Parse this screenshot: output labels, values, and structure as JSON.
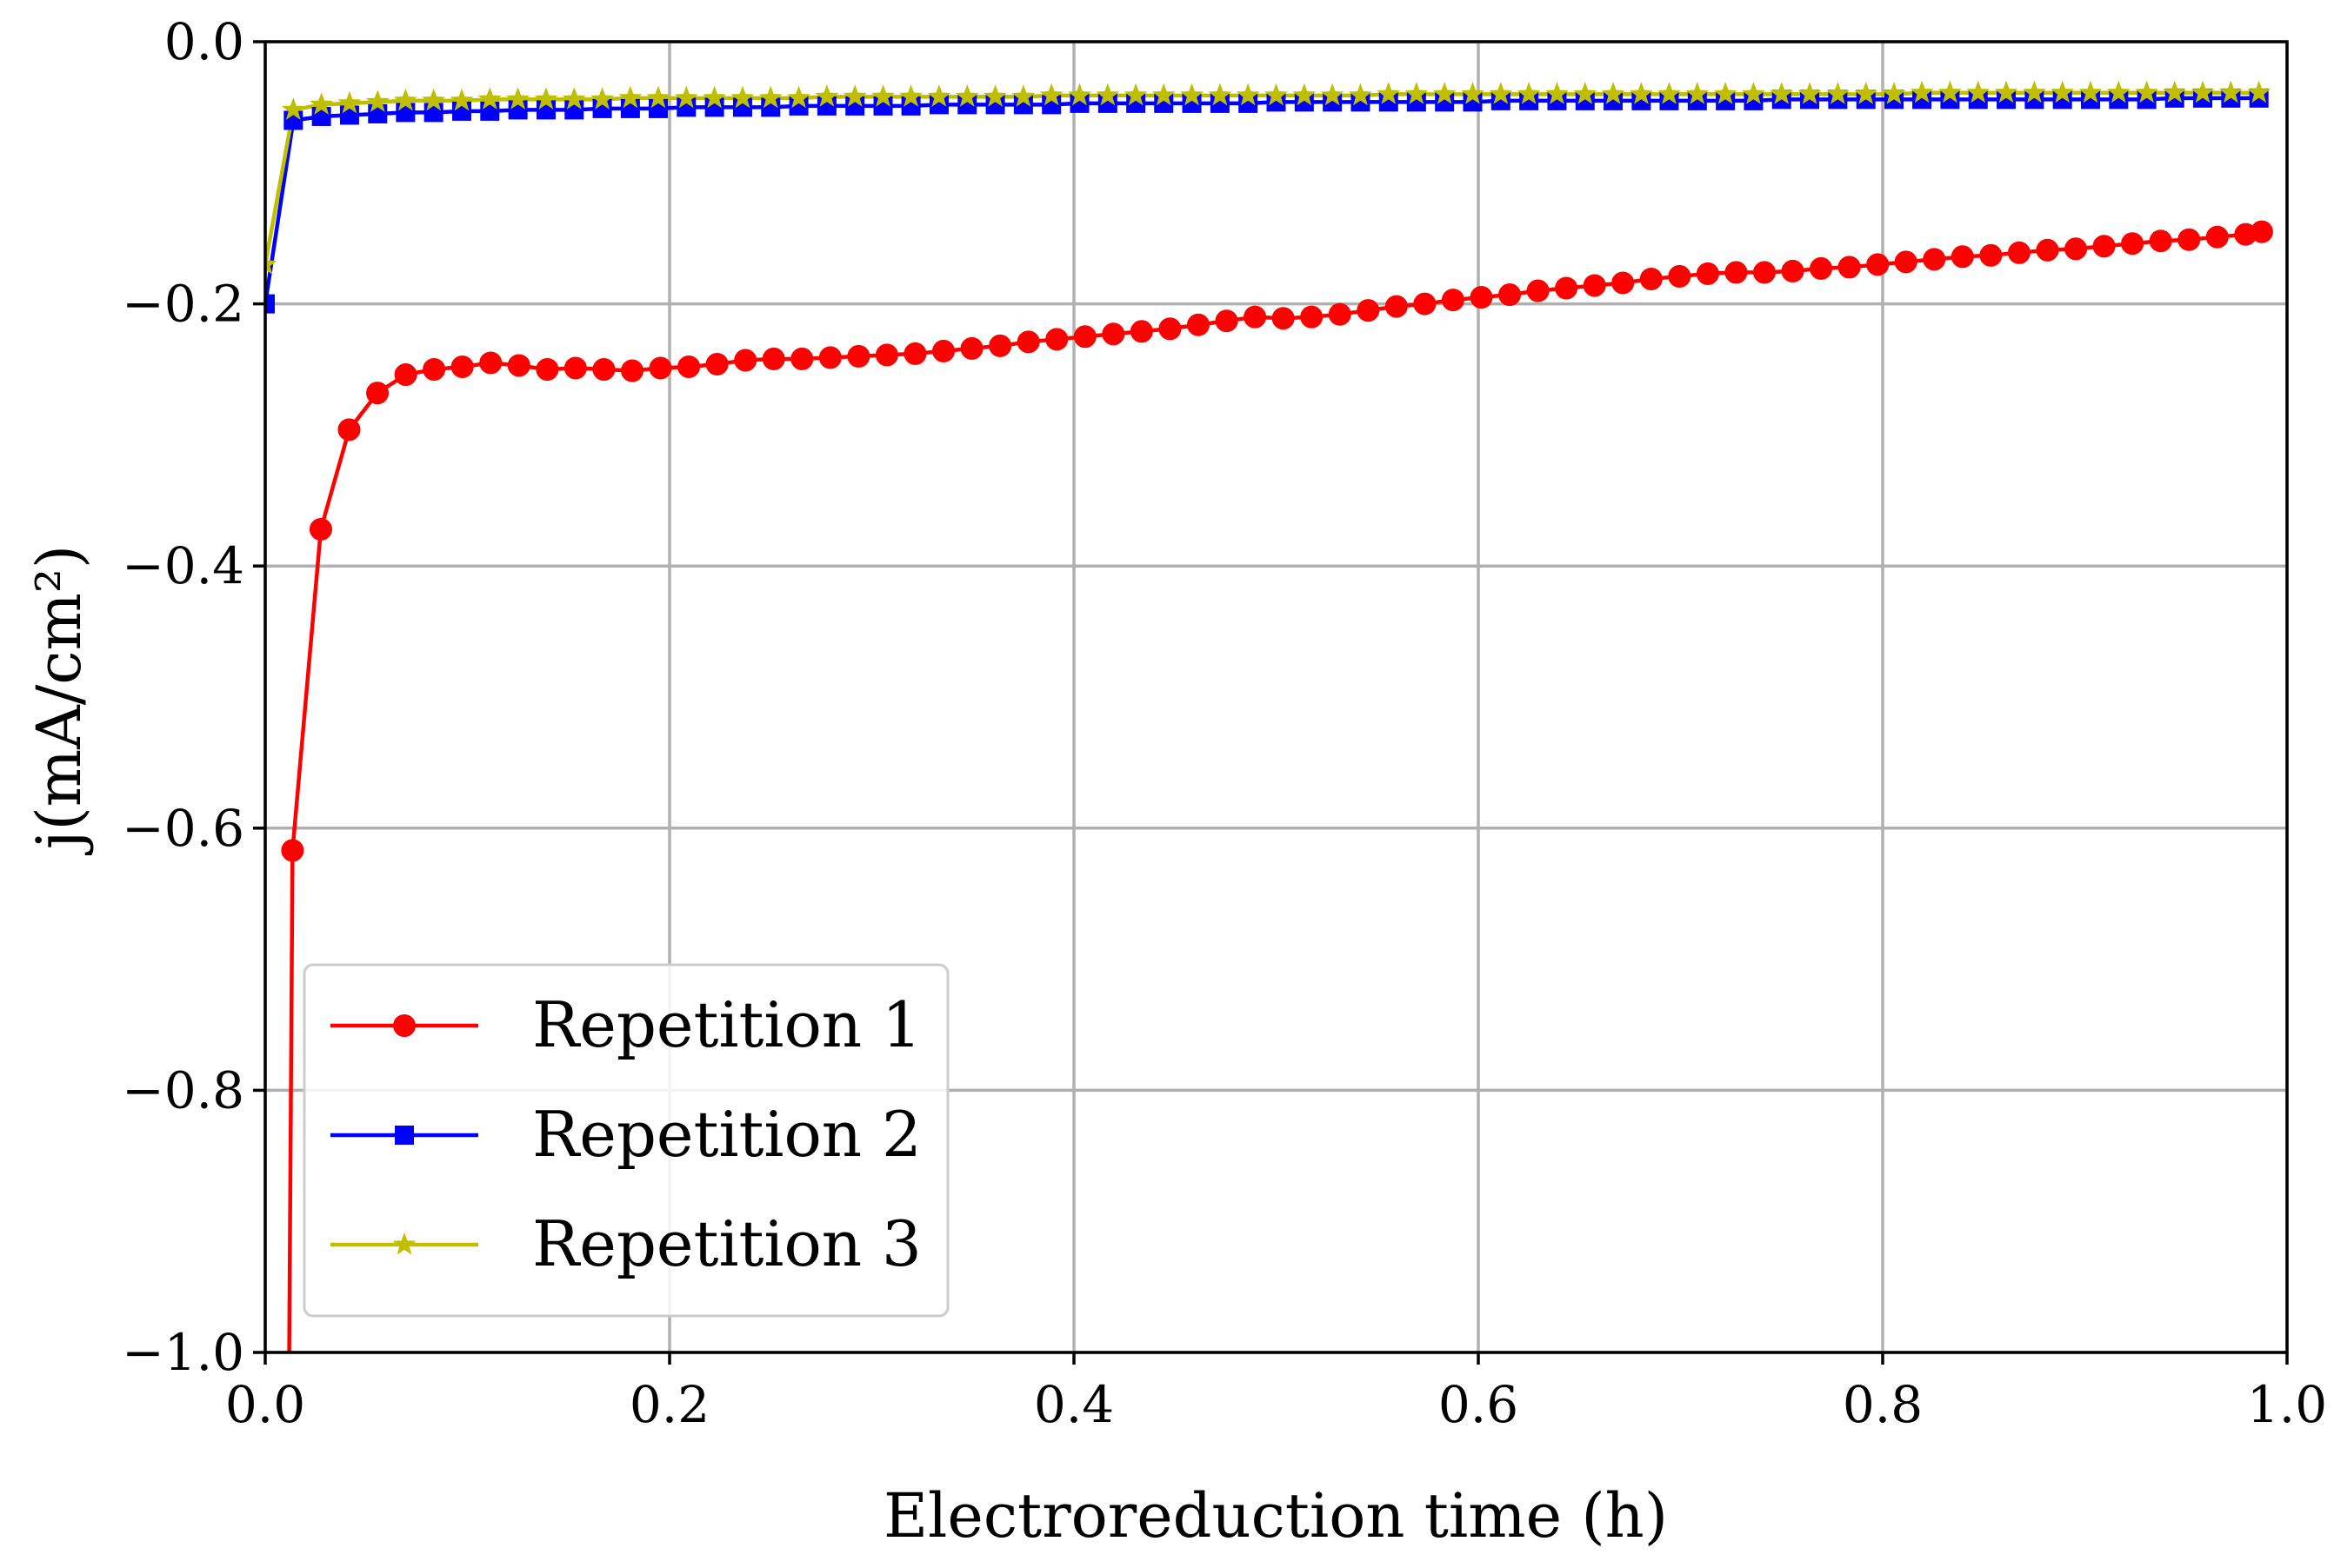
{
  "chart_data": {
    "type": "line",
    "title": "",
    "xlabel": "Electroreduction time (h)",
    "ylabel": "j(mA/cm²)",
    "xlim": [
      0.0,
      1.0
    ],
    "ylim": [
      -1.0,
      0.0
    ],
    "xticks": [
      0.0,
      0.2,
      0.4,
      0.6,
      0.8,
      1.0
    ],
    "xtick_labels": [
      "0.0",
      "0.2",
      "0.4",
      "0.6",
      "0.8",
      "1.0"
    ],
    "yticks": [
      0.0,
      -0.2,
      -0.4,
      -0.6,
      -0.8,
      -1.0
    ],
    "ytick_labels": [
      "0.0",
      "−0.2",
      "−0.4",
      "−0.6",
      "−0.8",
      "−1.0"
    ],
    "grid": true,
    "legend_position": "lower-left",
    "series": [
      {
        "name": "Repetition 1",
        "color": "#ff0000",
        "marker": "circle",
        "x": [
          0.0135,
          0.0275,
          0.0415,
          0.0555,
          0.0695,
          0.0835,
          0.0975,
          0.1115,
          0.1255,
          0.1395,
          0.1535,
          0.1675,
          0.1815,
          0.1955,
          0.2095,
          0.2235,
          0.2375,
          0.2515,
          0.2655,
          0.2795,
          0.2935,
          0.3075,
          0.3215,
          0.3355,
          0.3495,
          0.3635,
          0.3775,
          0.3915,
          0.4055,
          0.4195,
          0.4335,
          0.4475,
          0.4615,
          0.4755,
          0.4895,
          0.5035,
          0.5175,
          0.5315,
          0.5455,
          0.5595,
          0.5735,
          0.5875,
          0.6015,
          0.6155,
          0.6295,
          0.6435,
          0.6575,
          0.6715,
          0.6855,
          0.6995,
          0.7135,
          0.7275,
          0.7415,
          0.7555,
          0.7695,
          0.7835,
          0.7975,
          0.8115,
          0.8255,
          0.8395,
          0.8535,
          0.8675,
          0.8815,
          0.8955,
          0.9095,
          0.9235,
          0.9375,
          0.9515,
          0.9655,
          0.9795,
          0.9875
        ],
        "y": [
          -0.617,
          -0.372,
          -0.296,
          -0.268,
          -0.254,
          -0.25,
          -0.248,
          -0.245,
          -0.247,
          -0.25,
          -0.249,
          -0.25,
          -0.251,
          -0.249,
          -0.248,
          -0.246,
          -0.243,
          -0.242,
          -0.242,
          -0.241,
          -0.24,
          -0.239,
          -0.238,
          -0.236,
          -0.234,
          -0.232,
          -0.229,
          -0.227,
          -0.225,
          -0.223,
          -0.221,
          -0.219,
          -0.216,
          -0.213,
          -0.21,
          -0.211,
          -0.21,
          -0.208,
          -0.205,
          -0.202,
          -0.2,
          -0.197,
          -0.195,
          -0.193,
          -0.19,
          -0.188,
          -0.186,
          -0.184,
          -0.181,
          -0.179,
          -0.177,
          -0.176,
          -0.176,
          -0.175,
          -0.173,
          -0.172,
          -0.17,
          -0.168,
          -0.166,
          -0.164,
          -0.163,
          -0.161,
          -0.159,
          -0.158,
          -0.156,
          -0.154,
          -0.152,
          -0.151,
          -0.149,
          -0.147,
          -0.145
        ]
      },
      {
        "name": "Repetition 2",
        "color": "#0000ff",
        "marker": "square",
        "x": [
          0.0,
          0.0139,
          0.0278,
          0.0417,
          0.0556,
          0.0694,
          0.0833,
          0.0972,
          0.1111,
          0.125,
          0.1389,
          0.1528,
          0.1667,
          0.1806,
          0.1944,
          0.2083,
          0.2222,
          0.2361,
          0.25,
          0.2639,
          0.2778,
          0.2917,
          0.3056,
          0.3194,
          0.3333,
          0.3472,
          0.3611,
          0.375,
          0.3889,
          0.4028,
          0.4167,
          0.4306,
          0.4444,
          0.4583,
          0.4722,
          0.4861,
          0.5,
          0.5139,
          0.5278,
          0.5417,
          0.5556,
          0.5694,
          0.5833,
          0.5972,
          0.6111,
          0.625,
          0.6389,
          0.6528,
          0.6667,
          0.6806,
          0.6944,
          0.7083,
          0.7222,
          0.7361,
          0.75,
          0.7639,
          0.7778,
          0.7917,
          0.8056,
          0.8194,
          0.8333,
          0.8472,
          0.8611,
          0.875,
          0.8889,
          0.9028,
          0.9167,
          0.9306,
          0.9444,
          0.9583,
          0.9722,
          0.9861
        ],
        "y": [
          -0.2,
          -0.06,
          -0.057,
          -0.056,
          -0.055,
          -0.054,
          -0.054,
          -0.053,
          -0.053,
          -0.052,
          -0.052,
          -0.052,
          -0.051,
          -0.051,
          -0.051,
          -0.05,
          -0.05,
          -0.05,
          -0.05,
          -0.049,
          -0.049,
          -0.049,
          -0.049,
          -0.049,
          -0.048,
          -0.048,
          -0.048,
          -0.048,
          -0.048,
          -0.047,
          -0.047,
          -0.047,
          -0.047,
          -0.047,
          -0.047,
          -0.047,
          -0.046,
          -0.046,
          -0.046,
          -0.046,
          -0.046,
          -0.046,
          -0.046,
          -0.046,
          -0.045,
          -0.045,
          -0.045,
          -0.045,
          -0.045,
          -0.045,
          -0.045,
          -0.045,
          -0.045,
          -0.045,
          -0.044,
          -0.044,
          -0.044,
          -0.044,
          -0.044,
          -0.044,
          -0.044,
          -0.044,
          -0.044,
          -0.044,
          -0.044,
          -0.044,
          -0.044,
          -0.044,
          -0.043,
          -0.043,
          -0.043,
          -0.043
        ]
      },
      {
        "name": "Repetition 3",
        "color": "#bfbf00",
        "marker": "star",
        "x": [
          0.0,
          0.0139,
          0.0278,
          0.0417,
          0.0556,
          0.0694,
          0.0833,
          0.0972,
          0.1111,
          0.125,
          0.1389,
          0.1528,
          0.1667,
          0.1806,
          0.1944,
          0.2083,
          0.2222,
          0.2361,
          0.25,
          0.2639,
          0.2778,
          0.2917,
          0.3056,
          0.3194,
          0.3333,
          0.3472,
          0.3611,
          0.375,
          0.3889,
          0.4028,
          0.4167,
          0.4306,
          0.4444,
          0.4583,
          0.4722,
          0.4861,
          0.5,
          0.5139,
          0.5278,
          0.5417,
          0.5556,
          0.5694,
          0.5833,
          0.5972,
          0.6111,
          0.625,
          0.6389,
          0.6528,
          0.6667,
          0.6806,
          0.6944,
          0.7083,
          0.7222,
          0.7361,
          0.75,
          0.7639,
          0.7778,
          0.7917,
          0.8056,
          0.8194,
          0.8333,
          0.8472,
          0.8611,
          0.875,
          0.8889,
          0.9028,
          0.9167,
          0.9306,
          0.9444,
          0.9583,
          0.9722,
          0.9861
        ],
        "y": [
          -0.17,
          -0.052,
          -0.048,
          -0.047,
          -0.046,
          -0.045,
          -0.045,
          -0.045,
          -0.044,
          -0.044,
          -0.044,
          -0.044,
          -0.044,
          -0.043,
          -0.043,
          -0.043,
          -0.043,
          -0.043,
          -0.043,
          -0.043,
          -0.042,
          -0.042,
          -0.042,
          -0.042,
          -0.042,
          -0.042,
          -0.042,
          -0.042,
          -0.041,
          -0.041,
          -0.041,
          -0.041,
          -0.041,
          -0.041,
          -0.041,
          -0.041,
          -0.041,
          -0.041,
          -0.041,
          -0.041,
          -0.04,
          -0.04,
          -0.04,
          -0.04,
          -0.04,
          -0.04,
          -0.04,
          -0.04,
          -0.04,
          -0.04,
          -0.04,
          -0.04,
          -0.04,
          -0.04,
          -0.04,
          -0.04,
          -0.04,
          -0.04,
          -0.04,
          -0.039,
          -0.039,
          -0.039,
          -0.039,
          -0.039,
          -0.039,
          -0.039,
          -0.039,
          -0.039,
          -0.039,
          -0.039,
          -0.039,
          -0.039
        ]
      }
    ]
  }
}
